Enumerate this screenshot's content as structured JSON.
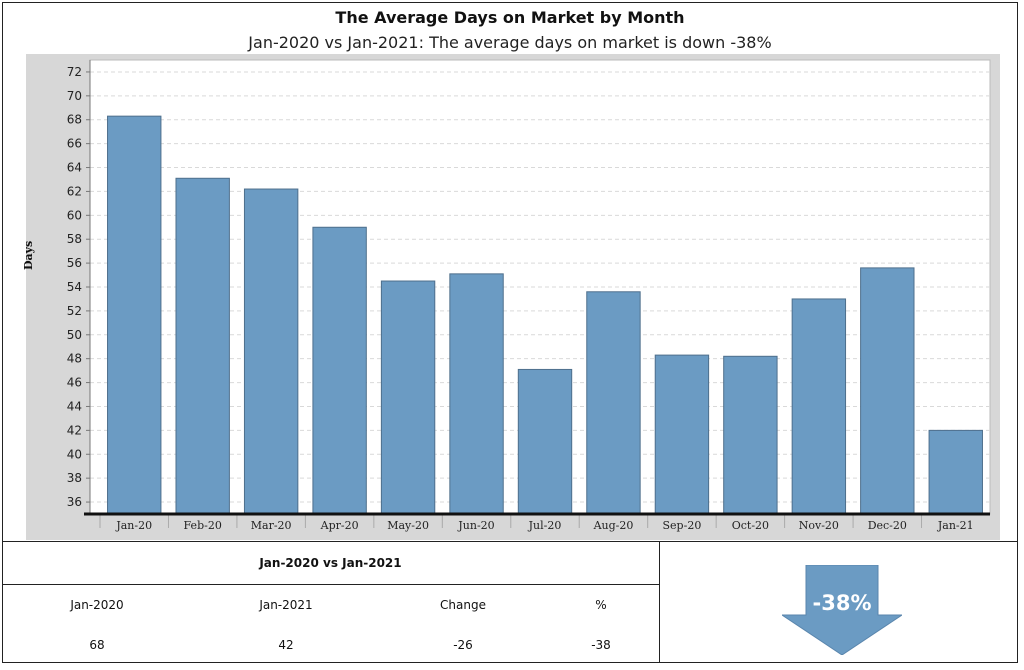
{
  "chart_data": {
    "type": "bar",
    "title": "The Average Days on Market by Month",
    "subtitle": "Jan-2020 vs Jan-2021: The average days on market is down -38%",
    "xlabel": "",
    "ylabel": "Days",
    "categories": [
      "Jan-20",
      "Feb-20",
      "Mar-20",
      "Apr-20",
      "May-20",
      "Jun-20",
      "Jul-20",
      "Aug-20",
      "Sep-20",
      "Oct-20",
      "Nov-20",
      "Dec-20",
      "Jan-21"
    ],
    "values": [
      68.3,
      63.1,
      62.2,
      59.0,
      54.5,
      55.1,
      47.1,
      53.6,
      48.3,
      48.2,
      53.0,
      55.6,
      42.0
    ],
    "ylim": [
      35,
      73
    ],
    "yticks": [
      36,
      38,
      40,
      42,
      44,
      46,
      48,
      50,
      52,
      54,
      56,
      58,
      60,
      62,
      64,
      66,
      68,
      70,
      72
    ],
    "grid": true,
    "bar_color": "#6b9bc3",
    "plot_background": "#ffffff",
    "frame_background": "#d7d7d7"
  },
  "table": {
    "heading": "Jan-2020 vs Jan-2021",
    "headers": [
      "Jan-2020",
      "Jan-2021",
      "Change",
      "%"
    ],
    "values": [
      "68",
      "42",
      "-26",
      "-38"
    ]
  },
  "indicator": {
    "label": "-38%",
    "direction": "down",
    "color": "#6b9bc3"
  }
}
